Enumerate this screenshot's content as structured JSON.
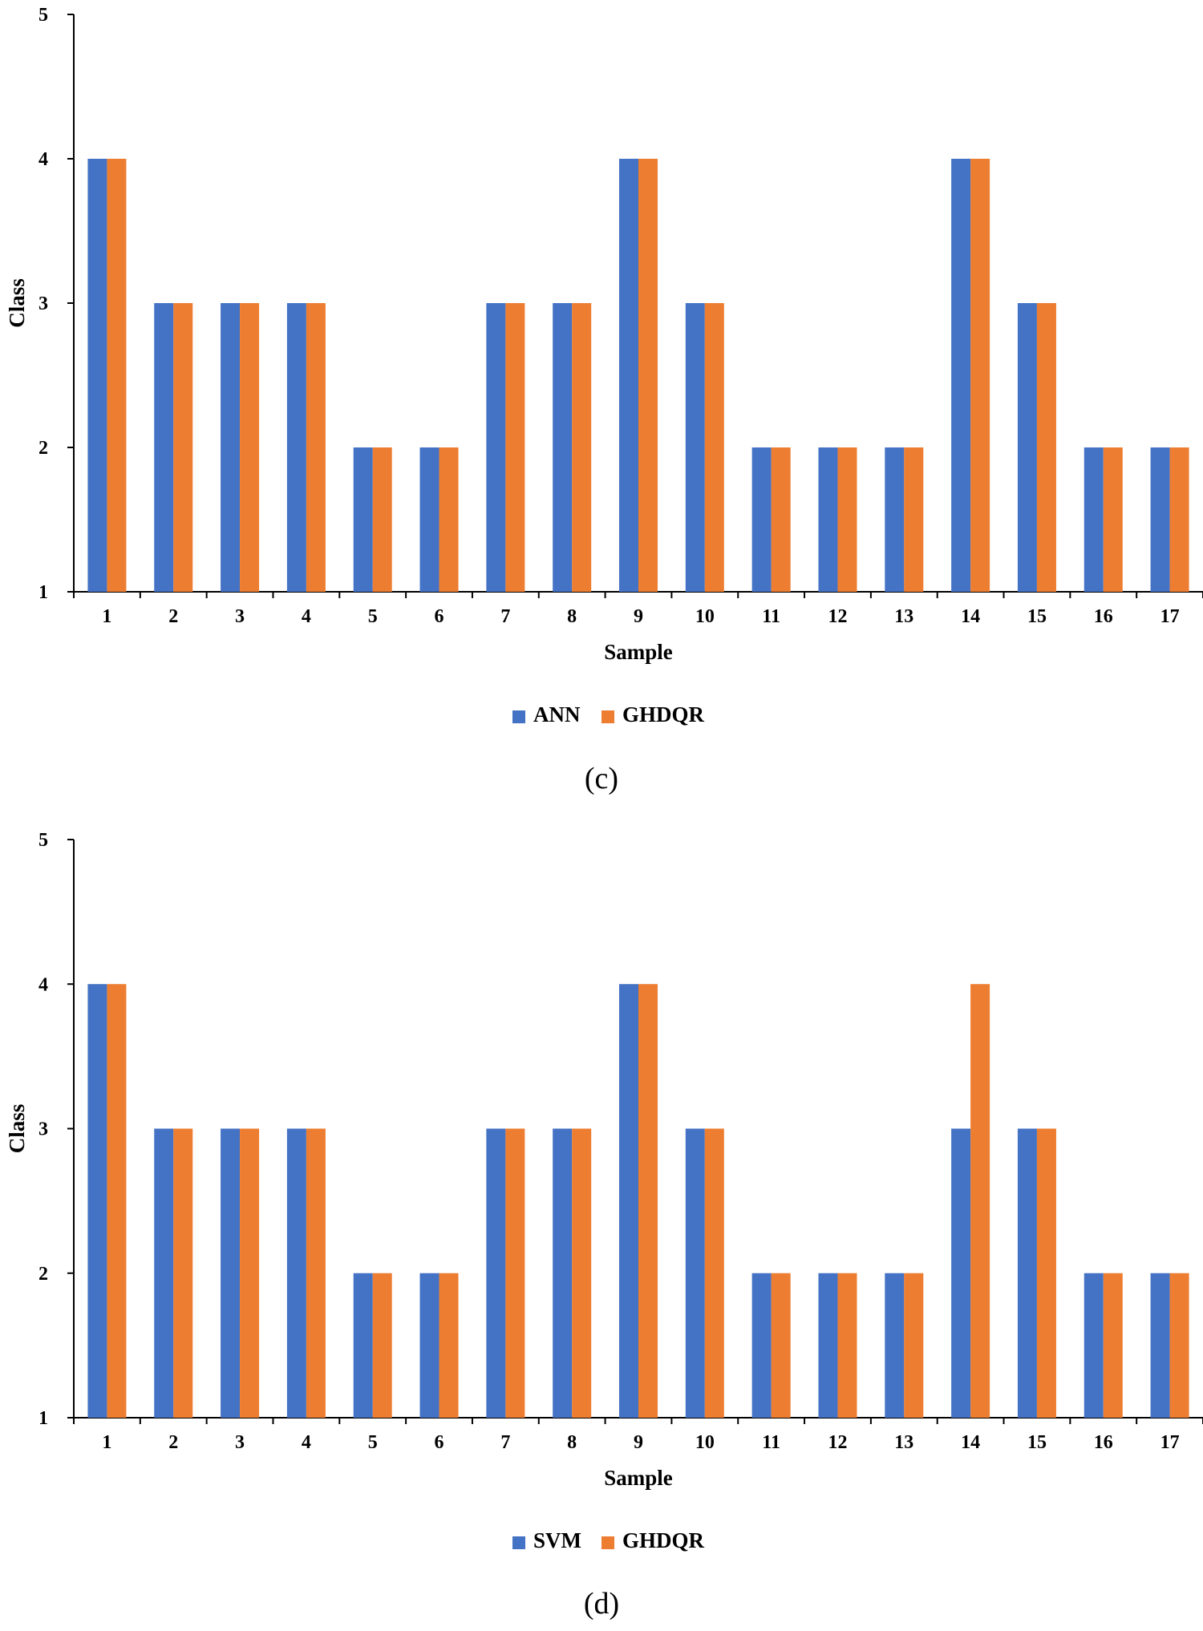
{
  "chart_data": [
    {
      "type": "bar",
      "panel_label": "(c)",
      "xlabel": "Sample",
      "ylabel": "Class",
      "ylim": [
        1,
        5
      ],
      "yticks": [
        1,
        2,
        3,
        4,
        5
      ],
      "categories": [
        "1",
        "2",
        "3",
        "4",
        "5",
        "6",
        "7",
        "8",
        "9",
        "10",
        "11",
        "12",
        "13",
        "14",
        "15",
        "16",
        "17"
      ],
      "series": [
        {
          "name": "ANN",
          "color": "#4472C4",
          "values": [
            4,
            3,
            3,
            3,
            2,
            2,
            3,
            3,
            4,
            3,
            2,
            2,
            2,
            4,
            3,
            2,
            2
          ]
        },
        {
          "name": "GHDQR",
          "color": "#ED7D31",
          "values": [
            4,
            3,
            3,
            3,
            2,
            2,
            3,
            3,
            4,
            3,
            2,
            2,
            2,
            4,
            3,
            2,
            2
          ]
        }
      ],
      "legend_position": "bottom"
    },
    {
      "type": "bar",
      "panel_label": "(d)",
      "xlabel": "Sample",
      "ylabel": "Class",
      "ylim": [
        1,
        5
      ],
      "yticks": [
        1,
        2,
        3,
        4,
        5
      ],
      "categories": [
        "1",
        "2",
        "3",
        "4",
        "5",
        "6",
        "7",
        "8",
        "9",
        "10",
        "11",
        "12",
        "13",
        "14",
        "15",
        "16",
        "17"
      ],
      "series": [
        {
          "name": "SVM",
          "color": "#4472C4",
          "values": [
            4,
            3,
            3,
            3,
            2,
            2,
            3,
            3,
            4,
            3,
            2,
            2,
            2,
            3,
            3,
            2,
            2
          ]
        },
        {
          "name": "GHDQR",
          "color": "#ED7D31",
          "values": [
            4,
            3,
            3,
            3,
            2,
            2,
            3,
            3,
            4,
            3,
            2,
            2,
            2,
            4,
            3,
            2,
            2
          ]
        }
      ],
      "legend_position": "bottom"
    }
  ]
}
